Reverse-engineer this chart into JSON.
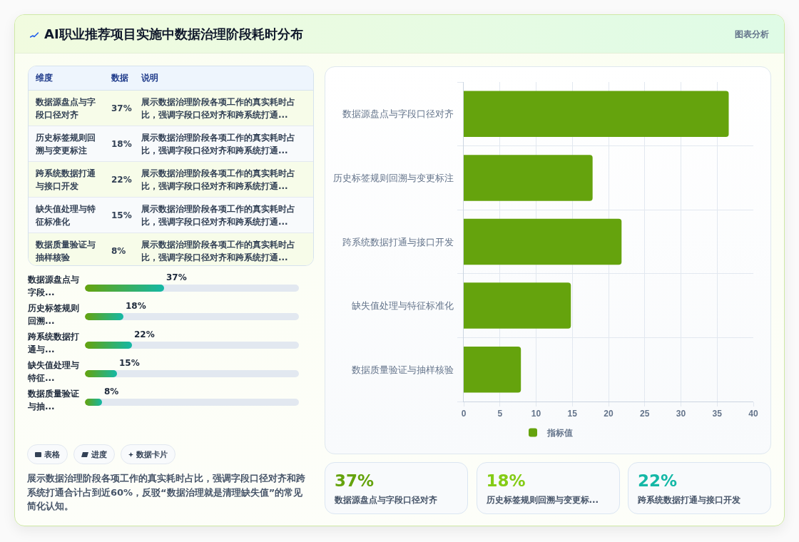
{
  "chart_data": [
    {
      "type": "bar",
      "orientation": "horizontal",
      "title": "AI职业推荐项目实施中数据治理阶段耗时分布",
      "subtitle": "展示数据治理阶段各项工作的真实耗时占比，强调字段口径对齐和跨系统打通合计占到近60%，反驳“数据治理就是清理缺失值”的常见简化认知。",
      "categories": [
        "数据源盘点与字段口径对齐",
        "历史标签规则回溯与变更标注",
        "跨系统数据打通与接口开发",
        "缺失值处理与特征标准化",
        "数据质量验证与抽样核验"
      ],
      "series": [
        {
          "name": "指标值",
          "color": "#65a30d",
          "values": [
            36.6,
            17.8,
            21.8,
            14.8,
            7.9
          ]
        }
      ],
      "xlim": [
        0,
        40
      ],
      "xticks": [
        0,
        5,
        10,
        15,
        20,
        25,
        30,
        35,
        40
      ],
      "grid": true,
      "legend": "bottom",
      "annotations": [
        "图表分析",
        "表格",
        "进度",
        "数据卡片"
      ]
    },
    {
      "type": "other",
      "annotations": [
        "维度",
        "数据",
        "说明",
        "数据源盘点与字段口径对齐",
        "37%",
        "展示数据治理阶段各项工作的真实耗时占比，强调字段口径对齐和跨系统打通...",
        "历史标签规则回溯与变更标注",
        "18%",
        "展示数据治理阶段各项工作的真实耗时占比，强调字段口径对齐和跨系统打通...",
        "跨系统数据打通与接口开发",
        "22%",
        "展示数据治理阶段各项工作的真实耗时占比，强调字段口径对齐和跨系统打通...",
        "缺失值处理与特征标准化",
        "15%",
        "展示数据治理阶段各项工作的真实耗时占比，强调字段口径对齐和跨系统打通...",
        "数据质量验证与抽样核验",
        "8%",
        "展示数据治理阶段各项工作的真实耗时占比，强调字段口径对齐和跨系统打通..."
      ]
    },
    {
      "type": "bar",
      "orientation": "horizontal",
      "categories": [
        "数据源盘点与字段...",
        "历史标签规则回溯...",
        "跨系统数据打通与...",
        "缺失值处理与特征...",
        "数据质量验证与抽..."
      ],
      "values": [
        37,
        18,
        22,
        15,
        8
      ],
      "value_labels": [
        "37%",
        "18%",
        "22%",
        "15%",
        "8%"
      ]
    },
    {
      "type": "other",
      "annotations": [
        "37%",
        "数据源盘点与字段口径对齐",
        "18%",
        "历史标签规则回溯与变更标...",
        "22%",
        "跨系统数据打通与接口开发"
      ]
    }
  ]
}
